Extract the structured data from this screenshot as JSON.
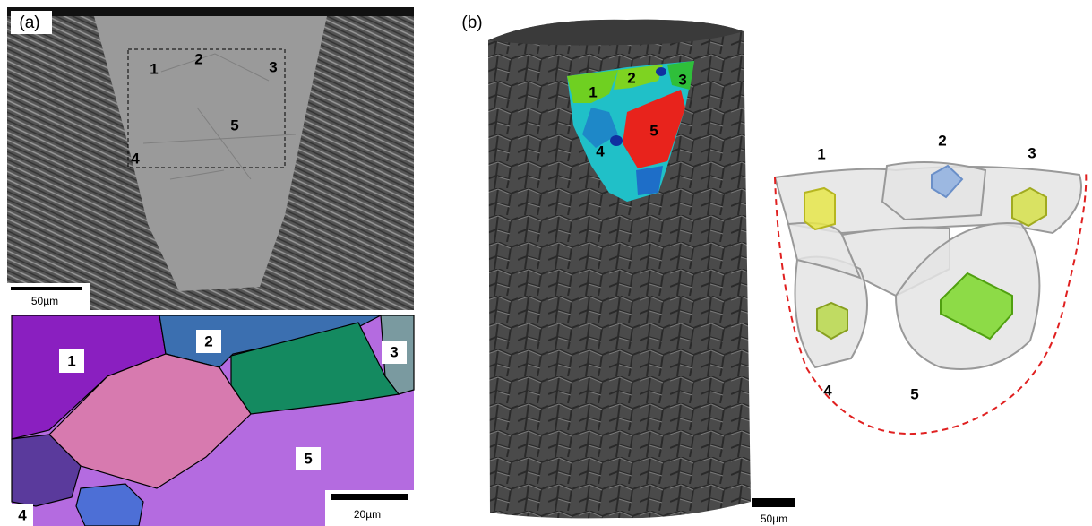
{
  "panel_a": {
    "label": "(a)",
    "sem": {
      "grain_labels": [
        "1",
        "2",
        "3",
        "5",
        "4"
      ],
      "scale_bar": "50µm"
    },
    "ebsd": {
      "grain_labels": [
        "1",
        "2",
        "3",
        "5",
        "4"
      ],
      "scale_bar": "20µm"
    }
  },
  "panel_b": {
    "label": "(b)",
    "tomography": {
      "grain_labels": [
        "1",
        "2",
        "3",
        "5",
        "4"
      ],
      "scale_bar": "50µm"
    },
    "grains_3d": {
      "grain_labels": [
        "1",
        "2",
        "3",
        "4",
        "5"
      ]
    }
  }
}
